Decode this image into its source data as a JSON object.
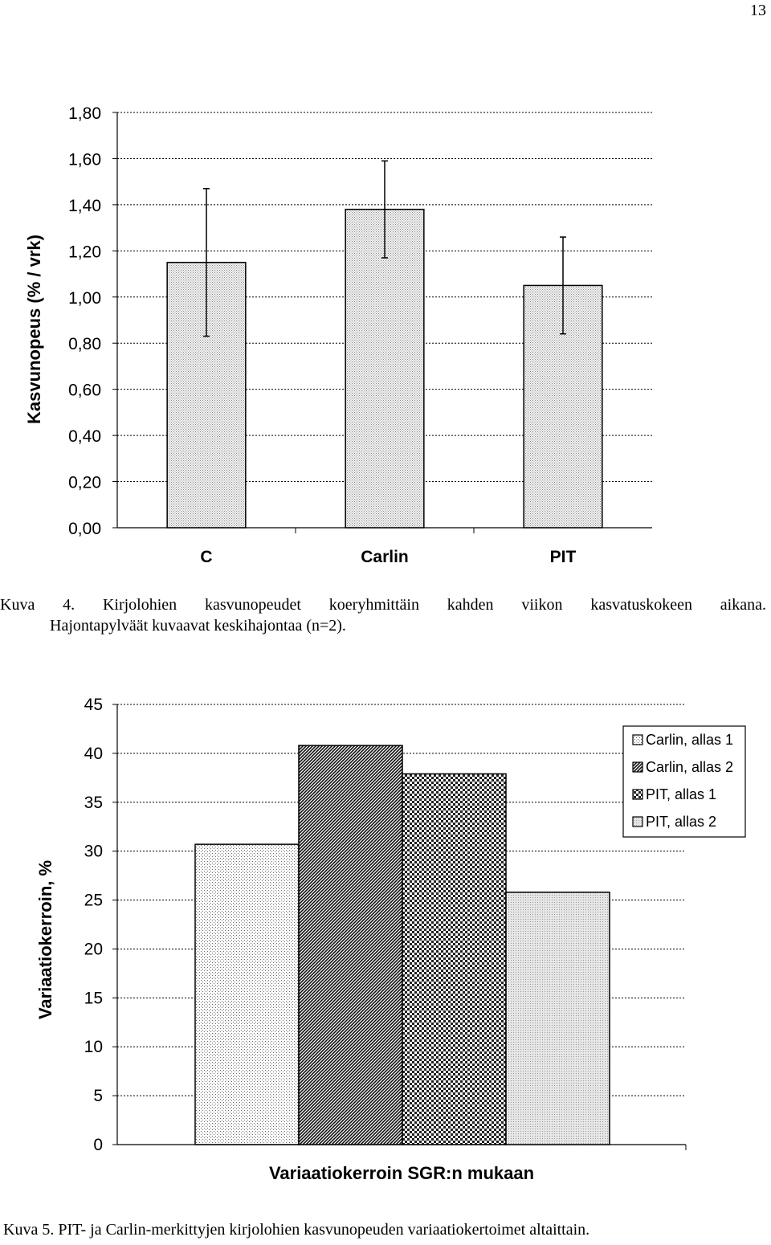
{
  "page_number": "13",
  "captions": {
    "fig4_prefix": "Kuva",
    "fig4_words": [
      "4.",
      "Kirjolohien",
      "kasvunopeudet",
      "koeryhmittäin",
      "kahden",
      "viikon",
      "kasvatuskokeen",
      "aikana."
    ],
    "fig4_line2": "Hajontapylväät kuvaavat keskihajontaa (n=2).",
    "fig5": "Kuva 5. PIT- ja Carlin-merkittyjen kirjolohien kasvunopeuden variaatiokertoimet altaittain."
  },
  "chart_data": [
    {
      "type": "bar",
      "title": "",
      "xlabel": "",
      "ylabel": "Kasvunopeus (% / vrk)",
      "ylim": [
        0,
        1.8
      ],
      "yticks": [
        "0,00",
        "0,20",
        "0,40",
        "0,60",
        "0,80",
        "1,00",
        "1,20",
        "1,40",
        "1,60",
        "1,80"
      ],
      "grid": true,
      "categories": [
        "C",
        "Carlin",
        "PIT"
      ],
      "values": [
        1.15,
        1.38,
        1.05
      ],
      "error_high": [
        1.47,
        1.59,
        1.26
      ],
      "error_low": [
        0.83,
        1.17,
        0.84
      ]
    },
    {
      "type": "bar",
      "title": "",
      "xlabel": "Variaatiokerroin SGR:n mukaan",
      "ylabel": "Variaatiokerroin, %",
      "ylim": [
        0,
        45
      ],
      "yticks": [
        "0",
        "5",
        "10",
        "15",
        "20",
        "25",
        "30",
        "35",
        "40",
        "45"
      ],
      "grid": true,
      "legend_position": "top-right",
      "series": [
        {
          "name": "Carlin, allas 1",
          "values": [
            30.7
          ]
        },
        {
          "name": "Carlin, allas 2",
          "values": [
            40.8
          ]
        },
        {
          "name": "PIT, allas 1",
          "values": [
            37.9
          ]
        },
        {
          "name": "PIT, allas 2",
          "values": [
            25.8
          ]
        }
      ]
    }
  ]
}
